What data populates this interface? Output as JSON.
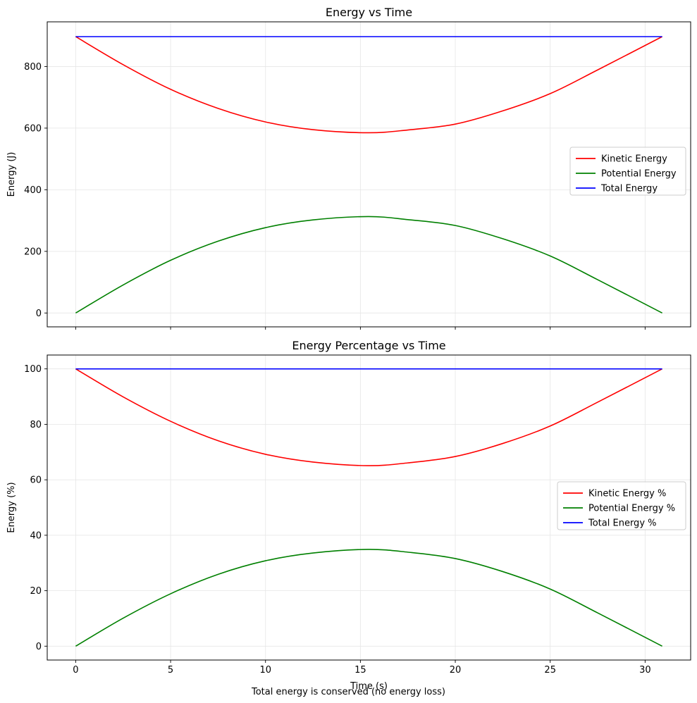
{
  "caption": "Total energy is conserved (no energy loss)",
  "chart_data": [
    {
      "type": "line",
      "title": "Energy vs Time",
      "xlabel": "",
      "ylabel": "Energy (J)",
      "xlim": [
        -1.5,
        32.4
      ],
      "ylim": [
        -45,
        945
      ],
      "xticks": [
        0,
        5,
        10,
        15,
        20,
        25,
        30
      ],
      "xtick_labels_shown": false,
      "yticks": [
        0,
        200,
        400,
        600,
        800
      ],
      "grid": true,
      "legend_position": "center-right",
      "t_end": 30.9,
      "series": [
        {
          "name": "Kinetic Energy",
          "color": "#ff0000",
          "x": [
            0,
            2.5,
            5,
            7.5,
            10,
            12.5,
            15.4,
            17.5,
            20,
            22.5,
            25,
            27.5,
            30.9
          ],
          "y": [
            897,
            806,
            726,
            664,
            620,
            595,
            585,
            594,
            613,
            656,
            712,
            789,
            897
          ]
        },
        {
          "name": "Potential Energy",
          "color": "#008000",
          "x": [
            0,
            2.5,
            5,
            7.5,
            10,
            12.5,
            15.4,
            17.5,
            20,
            22.5,
            25,
            27.5,
            30.9
          ],
          "y": [
            0,
            91,
            171,
            233,
            277,
            302,
            313,
            303,
            284,
            241,
            185,
            108,
            0
          ]
        },
        {
          "name": "Total Energy",
          "color": "#0000ff",
          "x": [
            0,
            30.9
          ],
          "y": [
            897,
            897
          ]
        }
      ]
    },
    {
      "type": "line",
      "title": "Energy Percentage vs Time",
      "xlabel": "Time (s)",
      "ylabel": "Energy (%)",
      "xlim": [
        -1.5,
        32.4
      ],
      "ylim": [
        -5,
        105
      ],
      "xticks": [
        0,
        5,
        10,
        15,
        20,
        25,
        30
      ],
      "xtick_labels_shown": true,
      "yticks": [
        0,
        20,
        40,
        60,
        80,
        100
      ],
      "grid": true,
      "legend_position": "center-right",
      "series": [
        {
          "name": "Kinetic Energy %",
          "color": "#ff0000",
          "x": [
            0,
            2.5,
            5,
            7.5,
            10,
            12.5,
            15.4,
            17.5,
            20,
            22.5,
            25,
            27.5,
            30.9
          ],
          "y": [
            100,
            89.9,
            81.1,
            74.1,
            69.2,
            66.4,
            65.1,
            66.1,
            68.4,
            73.1,
            79.4,
            88.0,
            100
          ]
        },
        {
          "name": "Potential Energy %",
          "color": "#008000",
          "x": [
            0,
            2.5,
            5,
            7.5,
            10,
            12.5,
            15.4,
            17.5,
            20,
            22.5,
            25,
            27.5,
            30.9
          ],
          "y": [
            0,
            10.1,
            18.9,
            25.9,
            30.8,
            33.6,
            34.9,
            33.9,
            31.6,
            26.9,
            20.6,
            12.0,
            0
          ]
        },
        {
          "name": "Total Energy %",
          "color": "#0000ff",
          "x": [
            0,
            30.9
          ],
          "y": [
            100,
            100
          ]
        }
      ]
    }
  ]
}
